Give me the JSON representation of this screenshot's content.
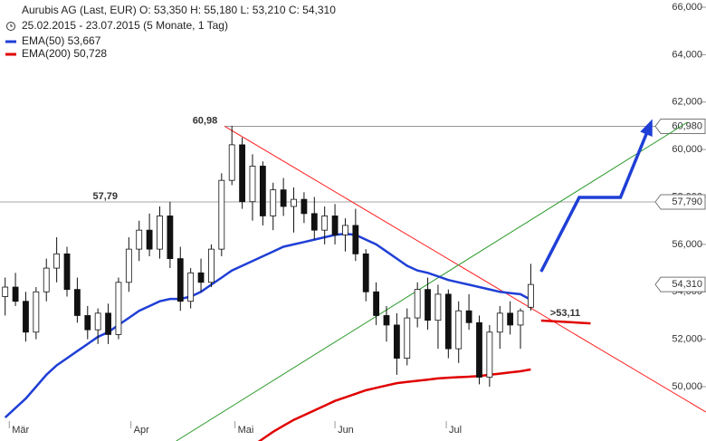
{
  "chart_data": {
    "type": "candlestick",
    "title": "Aurubis AG (Last, EUR)  O: 53,350  H: 55,180  L: 53,210  C: 54,310",
    "subtitle": "25.02.2015 - 23.07.2015 (5 Monate, 1 Tag)",
    "categories": [
      null,
      null,
      null,
      null,
      null,
      null,
      null,
      null,
      null,
      null,
      null,
      null,
      null,
      null,
      null,
      null,
      null,
      null,
      null,
      null,
      null,
      null,
      null,
      null,
      null,
      null,
      null,
      null,
      null,
      null,
      null,
      null,
      null,
      null,
      null,
      null,
      null,
      null,
      null,
      null,
      null,
      null,
      null,
      null,
      null,
      null,
      null,
      null,
      null,
      null,
      null,
      null
    ],
    "open": [
      53800,
      54200,
      53600,
      52300,
      54000,
      55000,
      55600,
      54100,
      53000,
      52400,
      53100,
      52200,
      54400,
      55800,
      56600,
      55800,
      57200,
      55400,
      53600,
      54800,
      54400,
      55800,
      58700,
      60200,
      57800,
      59300,
      57200,
      58300,
      57600,
      57900,
      57300,
      56600,
      57200,
      56400,
      56800,
      55600,
      54000,
      53000,
      52600,
      51200,
      52900,
      54100,
      52800,
      53900,
      51600,
      53200,
      52700,
      50400,
      52300,
      53100,
      52600,
      53350
    ],
    "high": [
      54600,
      54800,
      54000,
      54200,
      55400,
      56300,
      55900,
      54600,
      53400,
      53300,
      53500,
      54600,
      56300,
      57000,
      57300,
      57600,
      57800,
      55900,
      55000,
      55400,
      56000,
      59000,
      61000,
      60500,
      59800,
      59500,
      58600,
      58800,
      58400,
      58200,
      58000,
      57600,
      57700,
      57100,
      57500,
      55800,
      54400,
      53400,
      53100,
      53300,
      54400,
      54600,
      54300,
      54100,
      53600,
      53900,
      53000,
      52600,
      53400,
      53600,
      53300,
      55180
    ],
    "low": [
      53000,
      53400,
      51900,
      52000,
      53600,
      54400,
      53800,
      52700,
      52000,
      51800,
      51800,
      52000,
      54000,
      55300,
      55500,
      55400,
      55000,
      53200,
      53300,
      54000,
      54200,
      55500,
      58500,
      57500,
      57000,
      56800,
      56600,
      57200,
      56500,
      56900,
      56200,
      56000,
      56000,
      55700,
      55300,
      53600,
      52600,
      51900,
      50500,
      50900,
      52500,
      52400,
      51600,
      51200,
      51000,
      52400,
      50100,
      50000,
      51600,
      52200,
      51600,
      53210
    ],
    "close": [
      54200,
      53600,
      52300,
      54000,
      55000,
      55600,
      54100,
      53000,
      52400,
      53100,
      52200,
      54400,
      55800,
      56600,
      55800,
      57200,
      55400,
      53600,
      54800,
      54400,
      55800,
      58700,
      60200,
      57800,
      59300,
      57200,
      58300,
      57600,
      57900,
      57300,
      56600,
      57200,
      56400,
      56800,
      55600,
      54000,
      53000,
      52600,
      51200,
      52900,
      54100,
      52800,
      53900,
      51600,
      53200,
      52700,
      50400,
      52300,
      53100,
      52600,
      53200,
      54310
    ],
    "series": [
      {
        "name": "EMA(50)  53,667",
        "color": "#1f3fd6",
        "values": [
          48700,
          49100,
          49500,
          50000,
          50500,
          50900,
          51200,
          51500,
          51800,
          52100,
          52300,
          52600,
          52900,
          53200,
          53400,
          53600,
          53700,
          53700,
          53800,
          54000,
          54300,
          54600,
          54900,
          55100,
          55300,
          55500,
          55700,
          55900,
          56000,
          56100,
          56200,
          56300,
          56400,
          56450,
          56400,
          56200,
          56000,
          55700,
          55400,
          55100,
          54900,
          54800,
          54650,
          54500,
          54400,
          54300,
          54200,
          54100,
          54000,
          53950,
          53900,
          53667
        ]
      },
      {
        "name": "EMA(200)  50,728",
        "color": "#e00000",
        "values": [
          null,
          null,
          null,
          null,
          null,
          null,
          null,
          null,
          null,
          null,
          null,
          null,
          null,
          null,
          null,
          null,
          null,
          null,
          null,
          null,
          null,
          null,
          46900,
          47200,
          47500,
          47800,
          48100,
          48350,
          48600,
          48800,
          49000,
          49200,
          49400,
          49550,
          49700,
          49850,
          49950,
          50050,
          50150,
          50200,
          50250,
          50300,
          50350,
          50380,
          50400,
          50420,
          50450,
          50500,
          50550,
          50600,
          50650,
          50728
        ]
      }
    ],
    "ylim": [
      47710,
      66305
    ],
    "xlim": [
      -0.5,
      68
    ],
    "yticks": [
      {
        "value": 50000,
        "label": "50,000"
      },
      {
        "value": 52000,
        "label": "52,000"
      },
      {
        "value": 54000,
        "label": "54,000"
      },
      {
        "value": 56000,
        "label": "56,000"
      },
      {
        "value": 58000,
        "label": "58,000"
      },
      {
        "value": 60000,
        "label": "60,000"
      },
      {
        "value": 62000,
        "label": "62,000"
      },
      {
        "value": 64000,
        "label": "64,000"
      },
      {
        "value": 66000,
        "label": "66,000"
      }
    ],
    "xticks": [
      {
        "value": 0.4,
        "label": "Mär"
      },
      {
        "value": 12.2,
        "label": "Apr"
      },
      {
        "value": 22.3,
        "label": "Mai"
      },
      {
        "value": 32,
        "label": "Jun"
      },
      {
        "value": 42.8,
        "label": "Jul"
      }
    ],
    "hlines": [
      {
        "value": 60980,
        "from": 21.3,
        "label": "60,98",
        "price_label": "60,980"
      },
      {
        "value": 57790,
        "from": -0.5,
        "label": "57,79",
        "price_label": "57,790"
      }
    ],
    "last_price": {
      "value": 54310,
      "label": "54,310"
    },
    "trendlines": [
      {
        "color": "#ff2020",
        "x": [
          21.3,
          68
        ],
        "y": [
          60980,
          48930
        ]
      },
      {
        "color": "#2a9a2a",
        "x": [
          16.6,
          66.2
        ],
        "y": [
          47710,
          61150
        ]
      }
    ],
    "forecast": {
      "color": "#1f3fd6",
      "x": [
        52.0,
        55.7,
        59.7,
        62.6
      ],
      "y": [
        54850,
        57980,
        57980,
        61070
      ]
    },
    "support": {
      "color": "#e00000",
      "x": [
        52.0,
        56.8
      ],
      "y": [
        52790,
        52670
      ],
      "label": ">53,11"
    }
  }
}
